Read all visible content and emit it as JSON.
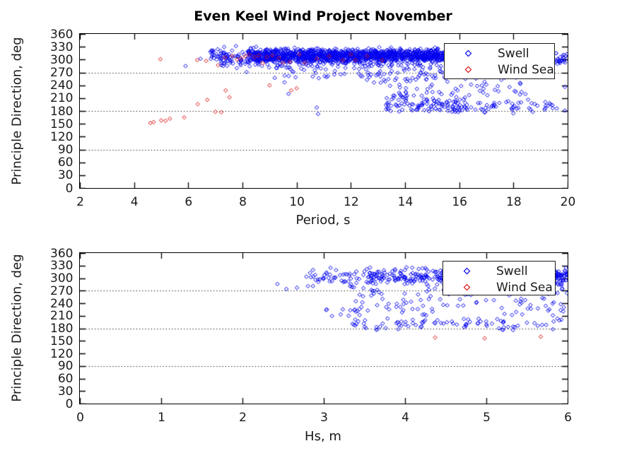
{
  "figure": {
    "title": "Even Keel Wind Project November",
    "background": "#ffffff"
  },
  "colors": {
    "swell": "#0000ee",
    "wind_sea": "#dd1111",
    "axis": "#000000",
    "grid": "#000000",
    "legend_border": "#1a1a1a"
  },
  "legend": {
    "items": [
      {
        "label": "Swell"
      },
      {
        "label": "Wind Sea"
      }
    ]
  },
  "chart_data": [
    {
      "type": "scatter",
      "title": "Even Keel Wind Project November",
      "xlabel": "Period, s",
      "ylabel": "Principle Direction, deg",
      "xlim": [
        2,
        20
      ],
      "ylim": [
        0,
        360
      ],
      "xticks": [
        2,
        4,
        6,
        8,
        10,
        12,
        14,
        16,
        18,
        20
      ],
      "yticks": [
        0,
        30,
        60,
        90,
        120,
        150,
        180,
        210,
        240,
        270,
        300,
        330,
        360
      ],
      "grid_y": [
        90,
        180,
        270
      ],
      "grid_style": "dotted",
      "legend_position": "top-right",
      "series": [
        {
          "name": "Swell",
          "color": "#0000ee",
          "marker": "open-diamond",
          "clusters": [
            {
              "n": 1100,
              "seed": 11,
              "x": [
                8.2,
                15.6
              ],
              "y": {
                "mean": 309,
                "sd": 7.5,
                "clip": [
                  284,
                  331
                ]
              }
            },
            {
              "n": 350,
              "seed": 12,
              "x": [
                7.2,
                15.6
              ],
              "y": {
                "mean": 305,
                "sd": 12,
                "clip": [
                  280,
                  332
                ]
              }
            },
            {
              "n": 28,
              "seed": 13,
              "x": [
                6.8,
                7.5
              ],
              "y": {
                "mean": 311,
                "sd": 7,
                "clip": [
                  295,
                  325
                ]
              }
            },
            {
              "n": 60,
              "seed": 14,
              "x": [
                15.6,
                18.1
              ],
              "y": {
                "mean": 304,
                "sd": 11,
                "clip": [
                  280,
                  326
                ]
              }
            },
            {
              "n": 26,
              "seed": 15,
              "x": [
                19.5,
                20
              ],
              "y": {
                "mean": 300,
                "sd": 9,
                "clip": [
                  283,
                  316
                ]
              }
            },
            {
              "n": 55,
              "seed": 16,
              "x": [
                12.0,
                15.6
              ],
              "y": {
                "range": [
                  252,
                  286
                ]
              }
            },
            {
              "n": 30,
              "seed": 17,
              "x": [
                9.0,
                12.0
              ],
              "y": {
                "range": [
                  255,
                  288
                ]
              }
            },
            {
              "n": 65,
              "seed": 18,
              "x": [
                12.6,
                18.6
              ],
              "y": {
                "range": [
                  213,
                  260
                ]
              }
            },
            {
              "n": 115,
              "seed": 19,
              "x": [
                13.3,
                16.3
              ],
              "y": {
                "mean": 193,
                "sd": 9,
                "clip": [
                  177,
                  224
                ]
              }
            },
            {
              "n": 48,
              "seed": 20,
              "x": [
                16.3,
                19.5
              ],
              "y": {
                "mean": 188,
                "sd": 9,
                "clip": [
                  174,
                  236
                ]
              }
            }
          ],
          "points": [
            [
              5.9,
              285
            ],
            [
              6.45,
              302
            ],
            [
              7.05,
              300
            ],
            [
              8.15,
              271
            ],
            [
              9.55,
              247
            ],
            [
              9.7,
              220
            ],
            [
              10.74,
              188
            ],
            [
              10.79,
              173
            ],
            [
              19.9,
              181
            ],
            [
              19.6,
              186
            ],
            [
              19.9,
              236
            ]
          ]
        },
        {
          "name": "Wind Sea",
          "color": "#dd1111",
          "marker": "open-diamond",
          "clusters": [],
          "points": [
            [
              4.6,
              152
            ],
            [
              4.72,
              154
            ],
            [
              5.0,
              158
            ],
            [
              5.16,
              157
            ],
            [
              5.32,
              162
            ],
            [
              5.85,
              165
            ],
            [
              4.97,
              301
            ],
            [
              6.35,
              196
            ],
            [
              6.7,
              206
            ],
            [
              7.0,
              178
            ],
            [
              7.22,
              177
            ],
            [
              7.38,
              228
            ],
            [
              7.52,
              212
            ],
            [
              9.8,
              228
            ],
            [
              10.0,
              233
            ],
            [
              6.33,
              299
            ],
            [
              6.66,
              297
            ],
            [
              7.1,
              287
            ],
            [
              7.35,
              305
            ],
            [
              7.62,
              309
            ],
            [
              7.8,
              300
            ],
            [
              7.95,
              303
            ],
            [
              8.1,
              308
            ],
            [
              8.25,
              312
            ],
            [
              8.45,
              306
            ],
            [
              8.6,
              310
            ],
            [
              8.75,
              292
            ],
            [
              8.9,
              306
            ],
            [
              9.1,
              310
            ],
            [
              9.35,
              304
            ],
            [
              9.5,
              293
            ],
            [
              9.75,
              295
            ],
            [
              10.3,
              293
            ],
            [
              10.75,
              302
            ],
            [
              11.2,
              308
            ],
            [
              11.7,
              299
            ],
            [
              12.17,
              299
            ],
            [
              12.6,
              308
            ],
            [
              13.16,
              299
            ],
            [
              9.0,
              240
            ],
            [
              12.0,
              312
            ],
            [
              10.1,
              312
            ]
          ]
        }
      ]
    },
    {
      "type": "scatter",
      "title": "",
      "xlabel": "Hs, m",
      "ylabel": "Principle Direction, deg",
      "xlim": [
        0,
        6
      ],
      "ylim": [
        0,
        360
      ],
      "xticks": [
        0,
        1,
        2,
        3,
        4,
        5,
        6
      ],
      "yticks": [
        0,
        30,
        60,
        90,
        120,
        150,
        180,
        210,
        240,
        270,
        300,
        330,
        360
      ],
      "grid_y": [
        90,
        180,
        270
      ],
      "grid_style": "dotted",
      "legend_position": "top-right",
      "series": [
        {
          "name": "Swell",
          "color": "#0000ee",
          "marker": "open-diamond",
          "clusters": [
            {
              "n": 250,
              "seed": 31,
              "x": [
                3.5,
                5.35
              ],
              "y": {
                "mean": 303,
                "sd": 11,
                "clip": [
                  279,
                  333
                ]
              }
            },
            {
              "n": 48,
              "seed": 32,
              "x": [
                2.78,
                3.5
              ],
              "y": {
                "mean": 301,
                "sd": 12,
                "clip": [
                  278,
                  331
                ]
              }
            },
            {
              "n": 60,
              "seed": 33,
              "x": [
                5.82,
                6.0
              ],
              "y": {
                "mean": 301,
                "sd": 11,
                "clip": [
                  281,
                  331
                ]
              }
            },
            {
              "n": 105,
              "seed": 34,
              "x": [
                3.35,
                6.0
              ],
              "y": {
                "range": [
                  210,
                  278
                ]
              }
            },
            {
              "n": 85,
              "seed": 35,
              "x": [
                3.35,
                6.0
              ],
              "y": {
                "mean": 190,
                "sd": 7,
                "clip": [
                  173,
                  211
                ]
              }
            },
            {
              "n": 9,
              "seed": 36,
              "x": [
                3.0,
                3.4
              ],
              "y": {
                "range": [
                  206,
                  226
                ]
              }
            }
          ],
          "points": [
            [
              2.43,
              286
            ],
            [
              2.54,
              274
            ],
            [
              2.67,
              277
            ],
            [
              2.9,
              296
            ]
          ]
        },
        {
          "name": "Wind Sea",
          "color": "#dd1111",
          "marker": "open-diamond",
          "clusters": [],
          "points": [
            [
              4.37,
              158
            ],
            [
              4.98,
              156
            ],
            [
              5.67,
              160
            ]
          ]
        }
      ]
    }
  ]
}
